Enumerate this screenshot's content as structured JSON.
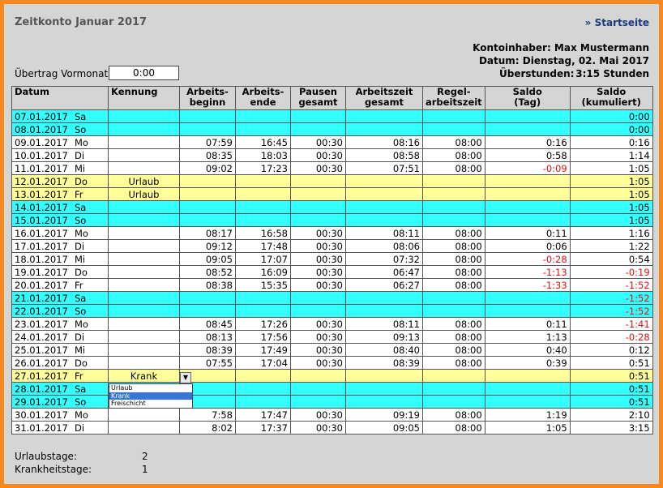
{
  "header": {
    "title": "Zeitkonto Januar 2017",
    "link": "» Startseite",
    "owner": "Kontoinhaber: Max Mustermann",
    "date": "Datum: Dienstag, 02. Mai 2017",
    "overtime_label": "Überstunden:",
    "overtime_value": "3:15 Stunden"
  },
  "carry": {
    "label": "Übertrag Vormonat:",
    "value": "0:00"
  },
  "table": {
    "columns": [
      [
        "Datum"
      ],
      [
        "Kennung"
      ],
      [
        "Arbeits-",
        "beginn"
      ],
      [
        "Arbeits-",
        "ende"
      ],
      [
        "Pausen",
        "gesamt"
      ],
      [
        "Arbeitszeit",
        "gesamt"
      ],
      [
        "Regel-",
        "arbeitszeit"
      ],
      [
        "Saldo",
        "(Tag)"
      ],
      [
        "Saldo",
        "(kumuliert)"
      ]
    ],
    "rows": [
      {
        "color": "#33ffff",
        "cells": [
          "07.01.2017",
          "Sa",
          null,
          null,
          null,
          null,
          null,
          null,
          null,
          "0:00"
        ]
      },
      {
        "color": "#33ffff",
        "cells": [
          "08.01.2017",
          "So",
          null,
          null,
          null,
          null,
          null,
          null,
          null,
          "0:00"
        ]
      },
      {
        "color": "#ffffff",
        "cells": [
          "09.01.2017",
          "Mo",
          null,
          "07:59",
          "16:45",
          "00:30",
          "08:16",
          "08:00",
          "0:16",
          "0:16"
        ]
      },
      {
        "color": "#ffffff",
        "cells": [
          "10.01.2017",
          "Di",
          null,
          "08:35",
          "18:03",
          "00:30",
          "08:58",
          "08:00",
          "0:58",
          "1:14"
        ]
      },
      {
        "color": "#ffffff",
        "cells": [
          "11.01.2017",
          "Mi",
          null,
          "09:02",
          "17:23",
          "00:30",
          "07:51",
          "08:00",
          "-0:09",
          "1:05"
        ]
      },
      {
        "color": "#ffff99",
        "cells": [
          "12.01.2017",
          "Do",
          "Urlaub",
          null,
          null,
          null,
          null,
          null,
          null,
          "1:05"
        ]
      },
      {
        "color": "#ffff99",
        "cells": [
          "13.01.2017",
          "Fr",
          "Urlaub",
          null,
          null,
          null,
          null,
          null,
          null,
          "1:05"
        ]
      },
      {
        "color": "#33ffff",
        "cells": [
          "14.01.2017",
          "Sa",
          null,
          null,
          null,
          null,
          null,
          null,
          null,
          "1:05"
        ]
      },
      {
        "color": "#33ffff",
        "cells": [
          "15.01.2017",
          "So",
          null,
          null,
          null,
          null,
          null,
          null,
          null,
          "1:05"
        ]
      },
      {
        "color": "#ffffff",
        "cells": [
          "16.01.2017",
          "Mo",
          null,
          "08:17",
          "16:58",
          "00:30",
          "08:11",
          "08:00",
          "0:11",
          "1:16"
        ]
      },
      {
        "color": "#ffffff",
        "cells": [
          "17.01.2017",
          "Di",
          null,
          "09:12",
          "17:48",
          "00:30",
          "08:06",
          "08:00",
          "0:06",
          "1:22"
        ]
      },
      {
        "color": "#ffffff",
        "cells": [
          "18.01.2017",
          "Mi",
          null,
          "09:05",
          "17:07",
          "00:30",
          "07:32",
          "08:00",
          "-0:28",
          "0:54"
        ]
      },
      {
        "color": "#ffffff",
        "cells": [
          "19.01.2017",
          "Do",
          null,
          "08:52",
          "16:09",
          "00:30",
          "06:47",
          "08:00",
          "-1:13",
          "-0:19"
        ]
      },
      {
        "color": "#ffffff",
        "cells": [
          "20.01.2017",
          "Fr",
          null,
          "08:38",
          "15:35",
          "00:30",
          "06:27",
          "08:00",
          "-1:33",
          "-1:52"
        ]
      },
      {
        "color": "#33ffff",
        "cells": [
          "21.01.2017",
          "Sa",
          null,
          null,
          null,
          null,
          null,
          null,
          null,
          "-1:52"
        ]
      },
      {
        "color": "#33ffff",
        "cells": [
          "22.01.2017",
          "So",
          null,
          null,
          null,
          null,
          null,
          null,
          null,
          "-1:52"
        ]
      },
      {
        "color": "#ffffff",
        "cells": [
          "23.01.2017",
          "Mo",
          null,
          "08:45",
          "17:26",
          "00:30",
          "08:11",
          "08:00",
          "0:11",
          "-1:41"
        ]
      },
      {
        "color": "#ffffff",
        "cells": [
          "24.01.2017",
          "Di",
          null,
          "08:13",
          "17:56",
          "00:30",
          "09:13",
          "08:00",
          "1:13",
          "-0:28"
        ]
      },
      {
        "color": "#ffffff",
        "cells": [
          "25.01.2017",
          "Mi",
          null,
          "08:39",
          "17:49",
          "00:30",
          "08:40",
          "08:00",
          "0:40",
          "0:12"
        ]
      },
      {
        "color": "#ffffff",
        "cells": [
          "26.01.2017",
          "Do",
          null,
          "07:55",
          "17:04",
          "00:30",
          "08:39",
          "08:00",
          "0:39",
          "0:51"
        ]
      },
      {
        "color": "#ffff99",
        "cells": [
          "27.01.2017",
          "Fr",
          "Krank",
          null,
          null,
          null,
          null,
          null,
          null,
          "0:51"
        ],
        "dropdown": {
          "options": [
            "Urlaub",
            "Krank",
            "Freischicht"
          ],
          "selected": 1
        }
      },
      {
        "color": "#33ffff",
        "cells": [
          "28.01.2017",
          "Sa",
          null,
          null,
          null,
          null,
          null,
          null,
          null,
          "0:51"
        ]
      },
      {
        "color": "#33ffff",
        "cells": [
          "29.01.2017",
          "So",
          null,
          null,
          null,
          null,
          null,
          null,
          null,
          "0:51"
        ]
      },
      {
        "color": "#ffffff",
        "cells": [
          "30.01.2017",
          "Mo",
          null,
          "7:58",
          "17:47",
          "00:30",
          "09:19",
          "08:00",
          "1:19",
          "2:10"
        ]
      },
      {
        "color": "#ffffff",
        "cells": [
          "31.01.2017",
          "Di",
          null,
          "8:02",
          "17:37",
          "00:30",
          "09:05",
          "08:00",
          "1:05",
          "3:15"
        ]
      }
    ]
  },
  "footer": {
    "vacation_label": "Urlaubstage:",
    "vacation_value": "2",
    "sick_label": "Krankheitstage:",
    "sick_value": "1"
  }
}
